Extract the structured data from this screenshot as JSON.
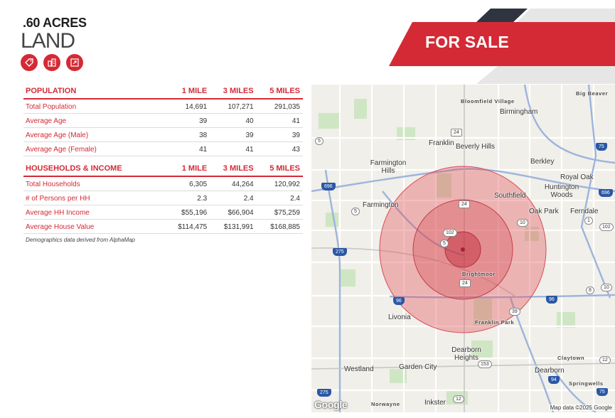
{
  "header": {
    "size": ".60 ACRES",
    "property_type": "LAND",
    "icons": [
      "price-tag-icon",
      "building-icon",
      "expand-icon"
    ]
  },
  "banner": {
    "label": "FOR SALE",
    "colors": {
      "red": "#d42a35",
      "dark": "#2f3440",
      "gray": "#e6e6e6"
    }
  },
  "population": {
    "headers": [
      "POPULATION",
      "1 MILE",
      "3 MILES",
      "5 MILES"
    ],
    "rows": [
      [
        "Total Population",
        "14,691",
        "107,271",
        "291,035"
      ],
      [
        "Average Age",
        "39",
        "40",
        "41"
      ],
      [
        "Average Age (Male)",
        "38",
        "39",
        "39"
      ],
      [
        "Average Age (Female)",
        "41",
        "41",
        "43"
      ]
    ]
  },
  "households": {
    "headers": [
      "HOUSEHOLDS & INCOME",
      "1 MILE",
      "3 MILES",
      "5 MILES"
    ],
    "rows": [
      [
        "Total Households",
        "6,305",
        "44,264",
        "120,992"
      ],
      [
        "# of Persons per HH",
        "2.3",
        "2.4",
        "2.4"
      ],
      [
        "Average HH Income",
        "$55,196",
        "$66,904",
        "$75,259"
      ],
      [
        "Average House Value",
        "$114,475",
        "$131,991",
        "$168,885"
      ]
    ]
  },
  "note": "Demographics data derived from AlphaMap",
  "map": {
    "places": [
      "Bloomfield Village",
      "Birmingham",
      "Big Beaver",
      "Franklin",
      "Beverly Hills",
      "Farmington Hills",
      "Berkley",
      "Royal Oak",
      "Huntington Woods",
      "Southfield",
      "Farmington",
      "Oak Park",
      "Ferndale",
      "Brightmoor",
      "Livonia",
      "Franklin Park",
      "Dearborn Heights",
      "Westland",
      "Garden City",
      "Dearborn",
      "Claytown",
      "Springwells",
      "Norwayne",
      "Inkster"
    ],
    "shields": [
      "24",
      "5",
      "75",
      "696",
      "696",
      "5",
      "24",
      "10",
      "1",
      "102",
      "102",
      "275",
      "5",
      "24",
      "96",
      "96",
      "39",
      "8",
      "10",
      "153",
      "12",
      "94",
      "75",
      "275",
      "12"
    ],
    "logo": "Google",
    "attribution": "Map data ©2025 Google"
  }
}
